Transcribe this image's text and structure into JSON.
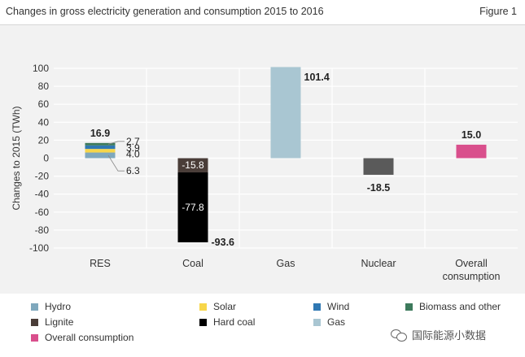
{
  "header": {
    "title": "Changes in gross electricity generation and consumption 2015 to 2016",
    "figure": "Figure 1"
  },
  "watermark": "国际能源小数据",
  "colors": {
    "hydro": "#7fa8bd",
    "solar": "#f7d64a",
    "wind": "#2f78b3",
    "biomass": "#3d7a5c",
    "lignite": "#4a3d38",
    "hard_coal": "#000000",
    "gas": "#a9c6d2",
    "nuclear": "#5a5a5a",
    "overall": "#d94f8c"
  },
  "chart_data": {
    "type": "bar",
    "stacked": true,
    "categories": [
      "RES",
      "Coal",
      "Gas",
      "Nuclear",
      "Overall\nconsumption"
    ],
    "ylabel": "Changes to 2015 (TWh)",
    "ylim": [
      -100,
      100
    ],
    "yticks": [
      100,
      80,
      60,
      40,
      20,
      0,
      -20,
      -40,
      -60,
      -80,
      -100
    ],
    "grid": true,
    "legend_position": "bottom",
    "series": [
      {
        "name": "Hydro",
        "color_key": "hydro",
        "values": [
          6.3,
          0,
          0,
          0,
          0
        ]
      },
      {
        "name": "Solar",
        "color_key": "solar",
        "values": [
          4.0,
          0,
          0,
          0,
          0
        ]
      },
      {
        "name": "Wind",
        "color_key": "wind",
        "values": [
          3.9,
          0,
          0,
          0,
          0
        ]
      },
      {
        "name": "Biomass and other",
        "color_key": "biomass",
        "values": [
          2.7,
          0,
          0,
          0,
          0
        ]
      },
      {
        "name": "Lignite",
        "color_key": "lignite",
        "values": [
          0,
          -15.8,
          0,
          0,
          0
        ]
      },
      {
        "name": "Hard coal",
        "color_key": "hard_coal",
        "values": [
          0,
          -77.8,
          0,
          0,
          0
        ]
      },
      {
        "name": "Gas",
        "color_key": "gas",
        "values": [
          0,
          0,
          101.4,
          0,
          0
        ]
      },
      {
        "name": "Nuclear",
        "color_key": "nuclear",
        "values": [
          0,
          0,
          0,
          -18.5,
          0
        ]
      },
      {
        "name": "Overall consumption",
        "color_key": "overall",
        "values": [
          0,
          0,
          0,
          0,
          15.0
        ]
      }
    ],
    "annotations": [
      {
        "text": "16.9",
        "category": "RES",
        "value": 16.9,
        "kind": "total"
      },
      {
        "text": "2.7",
        "category": "RES",
        "value": 2.7,
        "kind": "callout"
      },
      {
        "text": "3.9",
        "category": "RES",
        "value": 3.9,
        "kind": "side"
      },
      {
        "text": "4.0",
        "category": "RES",
        "value": 4.0,
        "kind": "side"
      },
      {
        "text": "6.3",
        "category": "RES",
        "value": 6.3,
        "kind": "callout"
      },
      {
        "text": "-15.8",
        "category": "Coal",
        "value": -15.8,
        "kind": "inside"
      },
      {
        "text": "-77.8",
        "category": "Coal",
        "value": -77.8,
        "kind": "inside"
      },
      {
        "text": "-93.6",
        "category": "Coal",
        "value": -93.6,
        "kind": "total"
      },
      {
        "text": "101.4",
        "category": "Gas",
        "value": 101.4,
        "kind": "total"
      },
      {
        "text": "-18.5",
        "category": "Nuclear",
        "value": -18.5,
        "kind": "total"
      },
      {
        "text": "15.0",
        "category": "Overall\nconsumption",
        "value": 15.0,
        "kind": "total"
      }
    ]
  },
  "legend": [
    {
      "label": "Hydro",
      "color_key": "hydro"
    },
    {
      "label": "Solar",
      "color_key": "solar"
    },
    {
      "label": "Wind",
      "color_key": "wind"
    },
    {
      "label": "Biomass and other",
      "color_key": "biomass"
    },
    {
      "label": "Lignite",
      "color_key": "lignite"
    },
    {
      "label": "Hard coal",
      "color_key": "hard_coal"
    },
    {
      "label": "Gas",
      "color_key": "gas"
    },
    {
      "label": "Overall consumption",
      "color_key": "overall"
    }
  ]
}
